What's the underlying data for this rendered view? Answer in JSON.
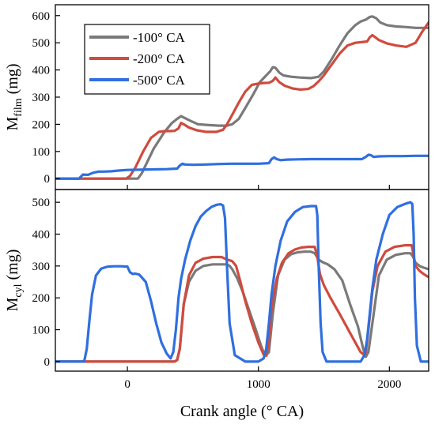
{
  "chart_data": [
    {
      "type": "line",
      "panel": "top",
      "ylabel_main": "M",
      "ylabel_sub": "film",
      "ylabel_unit": " (mg)",
      "xlim": [
        -550,
        2300
      ],
      "ylim": [
        -40,
        640
      ],
      "yticks": [
        0,
        100,
        200,
        300,
        400,
        500,
        600
      ],
      "legend": {
        "placement": "top-left",
        "entries": [
          "-100° CA",
          "-200° CA",
          "-500° CA"
        ]
      },
      "series": [
        {
          "name": "-100° CA",
          "color": "#7a7a7a",
          "x": [
            -550,
            50,
            80,
            110,
            140,
            200,
            280,
            340,
            380,
            410,
            430,
            480,
            540,
            620,
            700,
            760,
            800,
            850,
            900,
            960,
            1010,
            1060,
            1090,
            1110,
            1130,
            1160,
            1190,
            1250,
            1320,
            1400,
            1460,
            1500,
            1560,
            1620,
            1680,
            1740,
            1780,
            1820,
            1850,
            1870,
            1900,
            1930,
            1980,
            2050,
            2120,
            2200,
            2300
          ],
          "y": [
            0,
            0,
            0,
            20,
            50,
            110,
            170,
            205,
            220,
            230,
            225,
            213,
            200,
            197,
            195,
            195,
            200,
            220,
            260,
            310,
            355,
            380,
            395,
            410,
            408,
            390,
            380,
            375,
            372,
            370,
            375,
            395,
            440,
            490,
            535,
            565,
            578,
            585,
            595,
            597,
            590,
            575,
            565,
            560,
            558,
            555,
            555
          ]
        },
        {
          "name": "-200° CA",
          "color": "#cf4b3e",
          "x": [
            -550,
            -10,
            20,
            60,
            120,
            180,
            240,
            290,
            330,
            360,
            390,
            410,
            430,
            470,
            530,
            600,
            680,
            730,
            760,
            800,
            850,
            900,
            950,
            1000,
            1040,
            1080,
            1110,
            1130,
            1160,
            1200,
            1260,
            1320,
            1380,
            1420,
            1460,
            1500,
            1560,
            1620,
            1680,
            1740,
            1800,
            1830,
            1850,
            1870,
            1920,
            1980,
            2050,
            2130,
            2200,
            2250,
            2300
          ],
          "y": [
            0,
            0,
            10,
            40,
            100,
            150,
            172,
            175,
            175,
            176,
            185,
            205,
            200,
            188,
            178,
            172,
            172,
            180,
            200,
            235,
            280,
            320,
            345,
            350,
            352,
            353,
            360,
            372,
            355,
            342,
            332,
            328,
            330,
            340,
            358,
            380,
            420,
            460,
            490,
            500,
            503,
            505,
            520,
            528,
            510,
            498,
            490,
            485,
            500,
            540,
            575
          ]
        },
        {
          "name": "-500° CA",
          "color": "#2f6fe0",
          "x": [
            -550,
            -370,
            -340,
            -300,
            -260,
            -220,
            -180,
            -120,
            -60,
            0,
            100,
            200,
            300,
            380,
            400,
            420,
            440,
            500,
            600,
            700,
            800,
            900,
            1000,
            1080,
            1100,
            1120,
            1140,
            1170,
            1220,
            1300,
            1400,
            1500,
            1600,
            1700,
            1790,
            1820,
            1840,
            1860,
            1880,
            1920,
            2000,
            2100,
            2200,
            2300
          ],
          "y": [
            0,
            0,
            15,
            14,
            22,
            26,
            26,
            27,
            30,
            32,
            33,
            34,
            35,
            37,
            48,
            55,
            52,
            51,
            52,
            54,
            55,
            55,
            55,
            57,
            72,
            78,
            72,
            68,
            70,
            71,
            72,
            72,
            72,
            72,
            72,
            80,
            88,
            86,
            80,
            82,
            83,
            83,
            84,
            84
          ]
        }
      ]
    },
    {
      "type": "line",
      "panel": "bottom",
      "xlabel": "Crank angle (° CA)",
      "ylabel_main": "M",
      "ylabel_sub": "cyl",
      "ylabel_unit": " (mg)",
      "xlim": [
        -550,
        2300
      ],
      "ylim": [
        -30,
        540
      ],
      "xticks": [
        0,
        1000,
        2000
      ],
      "yticks": [
        0,
        100,
        200,
        300,
        400,
        500
      ],
      "series": [
        {
          "name": "-100° CA",
          "color": "#7a7a7a",
          "x": [
            -550,
            360,
            380,
            400,
            430,
            470,
            520,
            580,
            650,
            720,
            760,
            780,
            800,
            840,
            880,
            930,
            980,
            1020,
            1040,
            1060,
            1080,
            1110,
            1150,
            1200,
            1250,
            1300,
            1350,
            1400,
            1430,
            1460,
            1490,
            1530,
            1580,
            1640,
            1700,
            1760,
            1800,
            1820,
            1840,
            1870,
            1920,
            1980,
            2050,
            2120,
            2160,
            2180,
            2200,
            2230,
            2260,
            2300
          ],
          "y": [
            0,
            0,
            5,
            40,
            180,
            250,
            285,
            300,
            305,
            305,
            305,
            300,
            290,
            260,
            220,
            160,
            100,
            50,
            30,
            20,
            30,
            150,
            270,
            320,
            337,
            343,
            345,
            345,
            340,
            320,
            312,
            305,
            290,
            255,
            180,
            110,
            40,
            15,
            30,
            120,
            270,
            320,
            335,
            340,
            340,
            330,
            310,
            300,
            295,
            290
          ]
        },
        {
          "name": "-200° CA",
          "color": "#cf4b3e",
          "x": [
            -550,
            360,
            380,
            400,
            430,
            470,
            520,
            580,
            650,
            720,
            760,
            780,
            800,
            830,
            860,
            900,
            950,
            1000,
            1040,
            1060,
            1080,
            1100,
            1140,
            1180,
            1230,
            1280,
            1330,
            1380,
            1430,
            1450,
            1470,
            1500,
            1550,
            1620,
            1700,
            1780,
            1810,
            1820,
            1840,
            1870,
            1910,
            1970,
            2040,
            2120,
            2170,
            2180,
            2200,
            2230,
            2260,
            2300
          ],
          "y": [
            0,
            0,
            5,
            40,
            180,
            270,
            310,
            323,
            328,
            328,
            320,
            318,
            315,
            300,
            255,
            190,
            120,
            60,
            22,
            18,
            60,
            170,
            260,
            310,
            340,
            352,
            358,
            360,
            360,
            330,
            275,
            240,
            200,
            150,
            90,
            30,
            20,
            30,
            100,
            220,
            300,
            345,
            360,
            365,
            365,
            345,
            300,
            285,
            275,
            265
          ]
        },
        {
          "name": "-500° CA",
          "color": "#2f6fe0",
          "x": [
            -550,
            -330,
            -310,
            -290,
            -270,
            -240,
            -200,
            -150,
            -100,
            -50,
            0,
            20,
            40,
            60,
            90,
            140,
            180,
            220,
            260,
            300,
            330,
            350,
            370,
            390,
            410,
            440,
            480,
            520,
            560,
            600,
            640,
            680,
            710,
            730,
            745,
            760,
            780,
            820,
            900,
            1000,
            1040,
            1060,
            1080,
            1100,
            1130,
            1170,
            1220,
            1280,
            1340,
            1400,
            1440,
            1450,
            1460,
            1475,
            1490,
            1520,
            1600,
            1700,
            1780,
            1810,
            1830,
            1850,
            1870,
            1900,
            1950,
            2000,
            2060,
            2120,
            2160,
            2175,
            2185,
            2195,
            2210,
            2240,
            2300
          ],
          "y": [
            0,
            0,
            40,
            130,
            210,
            270,
            292,
            298,
            299,
            299,
            298,
            280,
            275,
            276,
            273,
            250,
            190,
            120,
            60,
            25,
            10,
            30,
            100,
            200,
            260,
            320,
            380,
            425,
            455,
            472,
            485,
            492,
            494,
            490,
            450,
            300,
            120,
            20,
            0,
            0,
            10,
            40,
            120,
            210,
            300,
            380,
            440,
            470,
            485,
            488,
            488,
            460,
            300,
            120,
            30,
            0,
            0,
            0,
            0,
            20,
            70,
            150,
            230,
            320,
            400,
            460,
            485,
            495,
            500,
            495,
            400,
            200,
            50,
            0,
            0
          ]
        }
      ]
    }
  ]
}
